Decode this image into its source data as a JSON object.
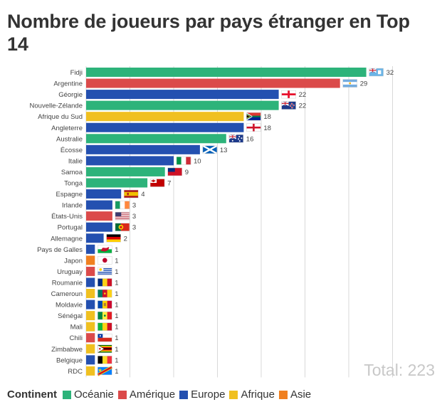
{
  "title": "Nombre de joueurs par pays étranger en Top 14",
  "total_label": "Total: 223",
  "legend": {
    "title": "Continent",
    "items": [
      {
        "label": "Océanie",
        "color": "#2db37a"
      },
      {
        "label": "Amérique",
        "color": "#db4a4a"
      },
      {
        "label": "Europe",
        "color": "#2450b0"
      },
      {
        "label": "Afrique",
        "color": "#f0c020"
      },
      {
        "label": "Asie",
        "color": "#f08020"
      }
    ]
  },
  "chart_data": {
    "type": "bar",
    "orientation": "horizontal",
    "title": "Nombre de joueurs par pays étranger en Top 14",
    "categories": [
      "Fidji",
      "Argentine",
      "Géorgie",
      "Nouvelle-Zélande",
      "Afrique du Sud",
      "Angleterre",
      "Australie",
      "Écosse",
      "Italie",
      "Samoa",
      "Tonga",
      "Espagne",
      "Irlande",
      "États-Unis",
      "Portugal",
      "Allemagne",
      "Pays de Galles",
      "Japon",
      "Uruguay",
      "Roumanie",
      "Cameroun",
      "Moldavie",
      "Sénégal",
      "Mali",
      "Chili",
      "Zimbabwe",
      "Belgique",
      "RDC"
    ],
    "values": [
      32,
      29,
      22,
      22,
      18,
      18,
      16,
      13,
      10,
      9,
      7,
      4,
      3,
      3,
      3,
      2,
      1,
      1,
      1,
      1,
      1,
      1,
      1,
      1,
      1,
      1,
      1,
      1
    ],
    "continents": [
      "Océanie",
      "Amérique",
      "Europe",
      "Océanie",
      "Afrique",
      "Europe",
      "Océanie",
      "Europe",
      "Europe",
      "Océanie",
      "Océanie",
      "Europe",
      "Europe",
      "Amérique",
      "Europe",
      "Europe",
      "Europe",
      "Asie",
      "Amérique",
      "Europe",
      "Afrique",
      "Europe",
      "Afrique",
      "Afrique",
      "Amérique",
      "Afrique",
      "Europe",
      "Afrique"
    ],
    "flags": [
      "fiji-flag",
      "argentina-flag",
      "georgia-flag",
      "new-zealand-flag",
      "south-africa-flag",
      "england-flag",
      "australia-flag",
      "scotland-flag",
      "italy-flag",
      "samoa-flag",
      "tonga-flag",
      "spain-flag",
      "ireland-flag",
      "usa-flag",
      "portugal-flag",
      "germany-flag",
      "wales-flag",
      "japan-flag",
      "uruguay-flag",
      "romania-flag",
      "cameroon-flag",
      "moldova-flag",
      "senegal-flag",
      "mali-flag",
      "chile-flag",
      "zimbabwe-flag",
      "belgium-flag",
      "drc-flag"
    ],
    "xlim": [
      0,
      35
    ],
    "grid": true,
    "total": 223,
    "legend_position": "bottom"
  }
}
